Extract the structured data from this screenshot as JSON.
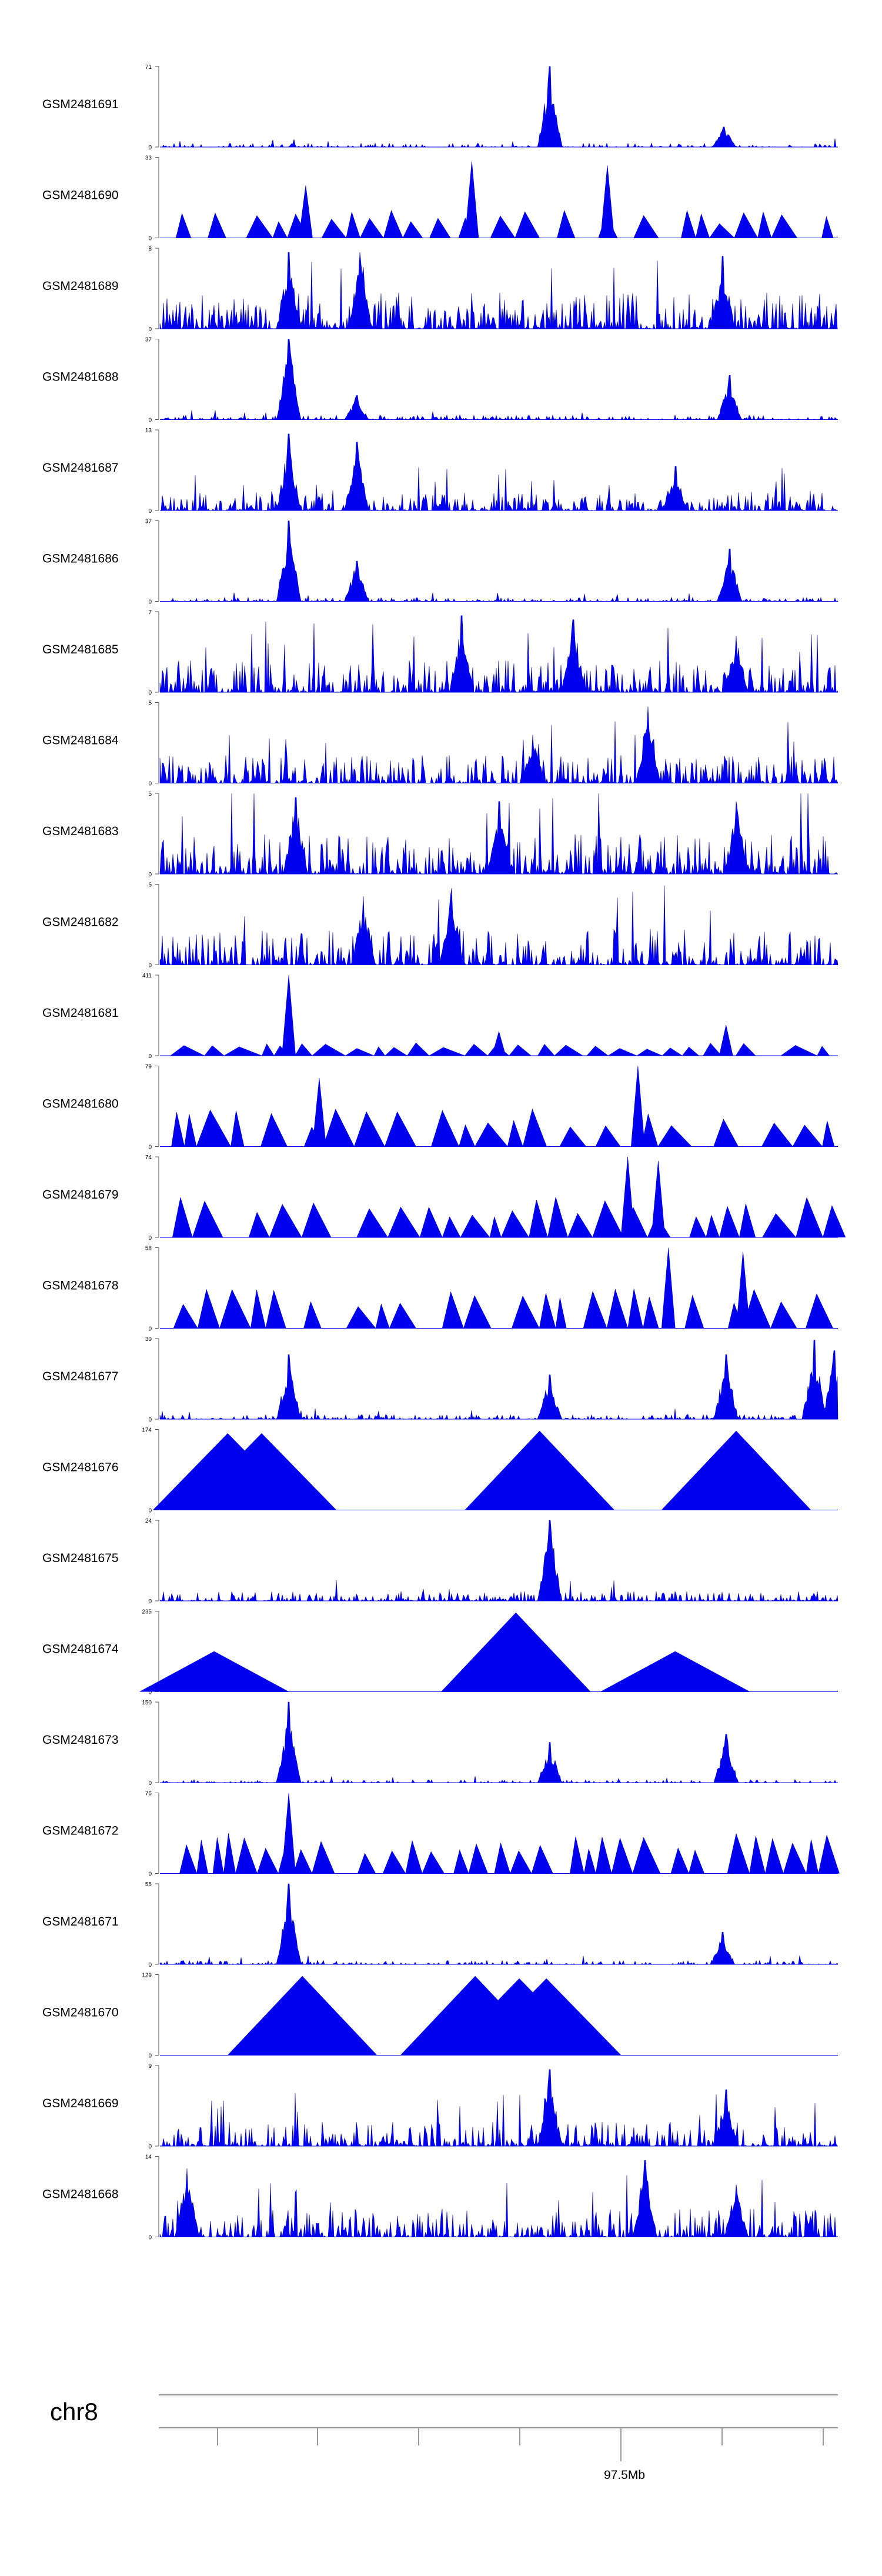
{
  "chart_data": {
    "type": "area",
    "title": "",
    "color": "#0000ee",
    "chromosome": "chr8",
    "axis_label": "97.5Mb",
    "x_ticks_count": 8,
    "tracks": [
      {
        "name": "GSM2481691",
        "ymax": "71",
        "ymin": "0",
        "style": "spiky",
        "base": 0.05,
        "density": 0.5,
        "peaks": [
          [
            0.575,
            1.0
          ],
          [
            0.832,
            0.25
          ]
        ]
      },
      {
        "name": "GSM2481690",
        "ymax": "33",
        "ymin": "0",
        "style": "triangles",
        "base": 0.35,
        "density": 0.8,
        "peaks": [
          [
            0.46,
            0.95
          ],
          [
            0.66,
            0.9
          ],
          [
            0.215,
            0.65
          ]
        ]
      },
      {
        "name": "GSM2481689",
        "ymax": "8",
        "ymin": "0",
        "style": "spiky",
        "base": 0.45,
        "density": 0.9,
        "peaks": [
          [
            0.19,
            0.95
          ],
          [
            0.295,
            0.95
          ],
          [
            0.83,
            0.9
          ]
        ]
      },
      {
        "name": "GSM2481688",
        "ymax": "37",
        "ymin": "0",
        "style": "spiky",
        "base": 0.06,
        "density": 0.7,
        "peaks": [
          [
            0.19,
            1.0
          ],
          [
            0.29,
            0.3
          ],
          [
            0.84,
            0.55
          ]
        ]
      },
      {
        "name": "GSM2481687",
        "ymax": "13",
        "ymin": "0",
        "style": "spiky",
        "base": 0.25,
        "density": 0.85,
        "peaks": [
          [
            0.19,
            0.95
          ],
          [
            0.29,
            0.85
          ],
          [
            0.76,
            0.55
          ]
        ]
      },
      {
        "name": "GSM2481686",
        "ymax": "37",
        "ymin": "0",
        "style": "spiky",
        "base": 0.05,
        "density": 0.7,
        "peaks": [
          [
            0.19,
            1.0
          ],
          [
            0.29,
            0.5
          ],
          [
            0.84,
            0.65
          ]
        ]
      },
      {
        "name": "GSM2481685",
        "ymax": "7",
        "ymin": "0",
        "style": "spiky",
        "base": 0.4,
        "density": 0.9,
        "peaks": [
          [
            0.445,
            0.95
          ],
          [
            0.61,
            0.9
          ],
          [
            0.85,
            0.7
          ]
        ]
      },
      {
        "name": "GSM2481684",
        "ymax": "5",
        "ymin": "0",
        "style": "spiky",
        "base": 0.35,
        "density": 0.9,
        "peaks": [
          [
            0.72,
            0.95
          ],
          [
            0.55,
            0.6
          ]
        ]
      },
      {
        "name": "GSM2481683",
        "ymax": "5",
        "ymin": "0",
        "style": "spiky",
        "base": 0.5,
        "density": 0.95,
        "peaks": [
          [
            0.2,
            0.95
          ],
          [
            0.5,
            0.9
          ],
          [
            0.85,
            0.9
          ]
        ]
      },
      {
        "name": "GSM2481682",
        "ymax": "5",
        "ymin": "0",
        "style": "spiky",
        "base": 0.45,
        "density": 0.9,
        "peaks": [
          [
            0.43,
            0.95
          ],
          [
            0.3,
            0.85
          ]
        ]
      },
      {
        "name": "GSM2481681",
        "ymax": "411",
        "ymin": "0",
        "style": "triangles",
        "base": 0.16,
        "density": 0.5,
        "peaks": [
          [
            0.19,
            1.0
          ],
          [
            0.835,
            0.38
          ],
          [
            0.5,
            0.3
          ]
        ]
      },
      {
        "name": "GSM2481680",
        "ymax": "79",
        "ymin": "0",
        "style": "triangles",
        "base": 0.48,
        "density": 0.6,
        "peaks": [
          [
            0.705,
            1.0
          ],
          [
            0.235,
            0.85
          ]
        ]
      },
      {
        "name": "GSM2481679",
        "ymax": "74",
        "ymin": "0",
        "style": "triangles",
        "base": 0.5,
        "density": 0.6,
        "peaks": [
          [
            0.69,
            1.0
          ],
          [
            0.735,
            0.95
          ]
        ]
      },
      {
        "name": "GSM2481678",
        "ymax": "58",
        "ymin": "0",
        "style": "triangles",
        "base": 0.5,
        "density": 0.7,
        "peaks": [
          [
            0.75,
            1.0
          ],
          [
            0.86,
            0.95
          ]
        ]
      },
      {
        "name": "GSM2481677",
        "ymax": "30",
        "ymin": "0",
        "style": "spiky",
        "base": 0.06,
        "density": 0.7,
        "peaks": [
          [
            0.19,
            0.8
          ],
          [
            0.575,
            0.55
          ],
          [
            0.835,
            0.8
          ],
          [
            0.965,
            0.98
          ],
          [
            0.995,
            0.85
          ]
        ]
      },
      {
        "name": "GSM2481676",
        "ymax": "174",
        "ymin": "0",
        "style": "triangles",
        "base": 1.0,
        "density": 0.0,
        "peaks": [
          [
            0.1,
            0.95
          ],
          [
            0.15,
            0.95
          ],
          [
            0.56,
            0.98
          ],
          [
            0.85,
            0.98
          ]
        ]
      },
      {
        "name": "GSM2481675",
        "ymax": "24",
        "ymin": "0",
        "style": "spiky",
        "base": 0.12,
        "density": 0.8,
        "peaks": [
          [
            0.575,
            1.0
          ]
        ]
      },
      {
        "name": "GSM2481674",
        "ymax": "235",
        "ymin": "0",
        "style": "triangles",
        "base": 0.5,
        "density": 0.0,
        "peaks": [
          [
            0.08,
            0.5
          ],
          [
            0.525,
            0.98
          ],
          [
            0.76,
            0.5
          ]
        ]
      },
      {
        "name": "GSM2481673",
        "ymax": "150",
        "ymin": "0",
        "style": "spiky",
        "base": 0.04,
        "density": 0.6,
        "peaks": [
          [
            0.19,
            1.0
          ],
          [
            0.575,
            0.5
          ],
          [
            0.835,
            0.6
          ]
        ]
      },
      {
        "name": "GSM2481672",
        "ymax": "76",
        "ymin": "0",
        "style": "triangles",
        "base": 0.5,
        "density": 0.75,
        "peaks": [
          [
            0.19,
            1.0
          ]
        ]
      },
      {
        "name": "GSM2481671",
        "ymax": "55",
        "ymin": "0",
        "style": "spiky",
        "base": 0.05,
        "density": 0.7,
        "peaks": [
          [
            0.19,
            1.0
          ],
          [
            0.83,
            0.4
          ]
        ]
      },
      {
        "name": "GSM2481670",
        "ymax": "129",
        "ymin": "0",
        "style": "triangles",
        "base": 1.0,
        "density": 0.0,
        "peaks": [
          [
            0.21,
            0.98
          ],
          [
            0.465,
            0.98
          ],
          [
            0.53,
            0.95
          ],
          [
            0.57,
            0.95
          ]
        ]
      },
      {
        "name": "GSM2481669",
        "ymax": "9",
        "ymin": "0",
        "style": "spiky",
        "base": 0.3,
        "density": 0.9,
        "peaks": [
          [
            0.575,
            0.95
          ],
          [
            0.835,
            0.7
          ]
        ]
      },
      {
        "name": "GSM2481668",
        "ymax": "14",
        "ymin": "0",
        "style": "spiky",
        "base": 0.35,
        "density": 0.9,
        "peaks": [
          [
            0.715,
            0.95
          ],
          [
            0.04,
            0.85
          ],
          [
            0.85,
            0.65
          ]
        ]
      }
    ]
  }
}
